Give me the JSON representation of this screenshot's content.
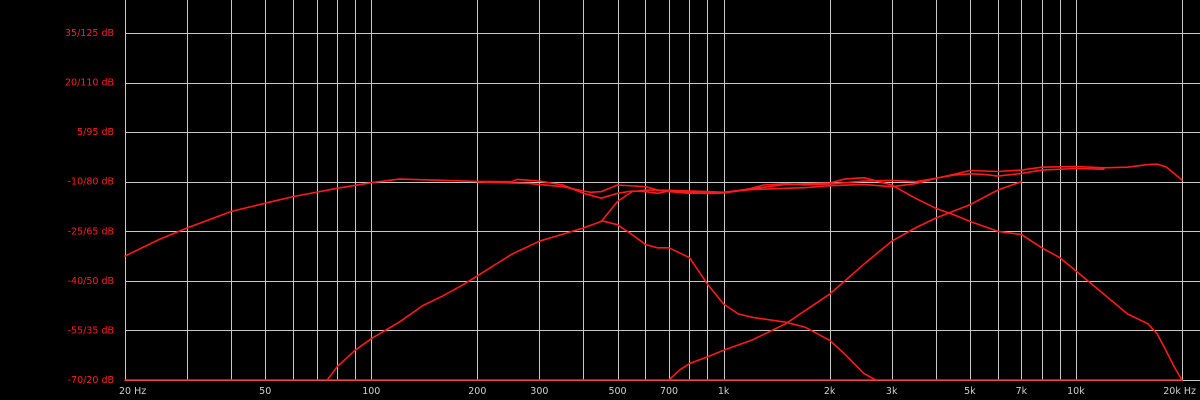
{
  "chart_data": {
    "type": "line",
    "title": "",
    "xlabel": "",
    "ylabel": "",
    "x_scale": "log",
    "xlim": [
      20,
      20000
    ],
    "ylim": [
      -70,
      35
    ],
    "grid": true,
    "legend": "none",
    "colors": {
      "background": "#000000",
      "grid": "#c8c8c8",
      "series": "#ff1a1a",
      "label": "#ff2020",
      "xlabel": "#d0d0d0"
    },
    "y_ticks": [
      {
        "value": 35,
        "label": "35/125 dB"
      },
      {
        "value": 20,
        "label": "20/110 dB"
      },
      {
        "value": 5,
        "label": "5/95 dB"
      },
      {
        "value": -10,
        "label": "-10/80 dB"
      },
      {
        "value": -25,
        "label": "-25/65 dB"
      },
      {
        "value": -40,
        "label": "-40/50 dB"
      },
      {
        "value": -55,
        "label": "-55/35 dB"
      },
      {
        "value": -70,
        "label": "-70/20 dB"
      }
    ],
    "x_ticks": [
      {
        "value": 20,
        "label": "20 Hz"
      },
      {
        "value": 50,
        "label": "50"
      },
      {
        "value": 100,
        "label": "100"
      },
      {
        "value": 200,
        "label": "200"
      },
      {
        "value": 300,
        "label": "300"
      },
      {
        "value": 500,
        "label": "500"
      },
      {
        "value": 700,
        "label": "700"
      },
      {
        "value": 1000,
        "label": "1k"
      },
      {
        "value": 2000,
        "label": "2k"
      },
      {
        "value": 3000,
        "label": "3k"
      },
      {
        "value": 5000,
        "label": "5k"
      },
      {
        "value": 7000,
        "label": "7k"
      },
      {
        "value": 10000,
        "label": "10k"
      },
      {
        "value": 20000,
        "label": "20k Hz"
      }
    ],
    "x_gridlines": [
      20,
      30,
      40,
      50,
      60,
      70,
      80,
      90,
      100,
      200,
      300,
      400,
      500,
      600,
      700,
      800,
      900,
      1000,
      2000,
      3000,
      4000,
      5000,
      6000,
      7000,
      8000,
      9000,
      10000,
      20000
    ],
    "series": [
      {
        "points": [
          [
            20,
            -32.5
          ],
          [
            25,
            -27.5
          ],
          [
            30,
            -24
          ],
          [
            40,
            -19
          ],
          [
            50,
            -16.5
          ],
          [
            60,
            -14.5
          ],
          [
            80,
            -12
          ],
          [
            100,
            -10.3
          ],
          [
            120,
            -9.2
          ],
          [
            150,
            -9.5
          ],
          [
            200,
            -9.9
          ],
          [
            250,
            -10
          ],
          [
            260,
            -9.3
          ],
          [
            300,
            -9.8
          ],
          [
            350,
            -11
          ],
          [
            400,
            -13.5
          ],
          [
            450,
            -15
          ],
          [
            500,
            -13.5
          ],
          [
            550,
            -12.8
          ],
          [
            600,
            -13
          ],
          [
            650,
            -13.5
          ],
          [
            700,
            -12.8
          ],
          [
            750,
            -13
          ],
          [
            800,
            -13.2
          ],
          [
            900,
            -13.6
          ],
          [
            1000,
            -13.4
          ],
          [
            1100,
            -12.8
          ],
          [
            1200,
            -12
          ],
          [
            1300,
            -11
          ],
          [
            1500,
            -10.6
          ],
          [
            1700,
            -11
          ],
          [
            2000,
            -10.7
          ],
          [
            2500,
            -9.8
          ],
          [
            3000,
            -9.6
          ],
          [
            3500,
            -10
          ],
          [
            4000,
            -9
          ],
          [
            4500,
            -7.8
          ],
          [
            5000,
            -6.6
          ],
          [
            6000,
            -6.9
          ],
          [
            7000,
            -6.5
          ],
          [
            8000,
            -5.6
          ],
          [
            10000,
            -5.4
          ],
          [
            12000,
            -5.8
          ],
          [
            14000,
            -5.6
          ],
          [
            16000,
            -4.8
          ],
          [
            17000,
            -4.7
          ],
          [
            18000,
            -5.5
          ],
          [
            19000,
            -7.5
          ],
          [
            20000,
            -9.5
          ]
        ]
      },
      {
        "points": [
          [
            75,
            -70
          ],
          [
            80,
            -66
          ],
          [
            90,
            -61
          ],
          [
            100,
            -57.5
          ],
          [
            120,
            -52.5
          ],
          [
            140,
            -47.5
          ],
          [
            160,
            -44.5
          ],
          [
            180,
            -41.5
          ],
          [
            200,
            -38.5
          ],
          [
            250,
            -32
          ],
          [
            300,
            -28
          ],
          [
            400,
            -24
          ],
          [
            450,
            -22
          ],
          [
            500,
            -16
          ],
          [
            550,
            -13
          ],
          [
            600,
            -12.5
          ],
          [
            700,
            -12.6
          ],
          [
            900,
            -13
          ],
          [
            1000,
            -13.2
          ],
          [
            1500,
            -10.8
          ],
          [
            2000,
            -10.4
          ],
          [
            2200,
            -9.2
          ],
          [
            2500,
            -8.8
          ],
          [
            3000,
            -11
          ],
          [
            3500,
            -15
          ],
          [
            4000,
            -18
          ],
          [
            4500,
            -20
          ],
          [
            5000,
            -22
          ],
          [
            6000,
            -25
          ],
          [
            7000,
            -26
          ],
          [
            8000,
            -30
          ],
          [
            9000,
            -33
          ],
          [
            10000,
            -37
          ],
          [
            12000,
            -44
          ],
          [
            14000,
            -50
          ],
          [
            16000,
            -53
          ],
          [
            17000,
            -56
          ],
          [
            18000,
            -61
          ],
          [
            19000,
            -66
          ],
          [
            20000,
            -70
          ]
        ]
      },
      {
        "points": [
          [
            200,
            -10.1
          ],
          [
            280,
            -10.5
          ],
          [
            350,
            -11.5
          ],
          [
            400,
            -12.8
          ],
          [
            420,
            -13.2
          ],
          [
            450,
            -13
          ],
          [
            500,
            -11
          ],
          [
            600,
            -11.5
          ],
          [
            650,
            -12.5
          ],
          [
            700,
            -13
          ],
          [
            800,
            -13.5
          ],
          [
            1000,
            -13.2
          ],
          [
            1200,
            -12.4
          ],
          [
            1500,
            -12
          ],
          [
            1700,
            -11.8
          ],
          [
            2000,
            -11.2
          ],
          [
            2500,
            -10.8
          ],
          [
            3000,
            -11.5
          ],
          [
            3500,
            -10.6
          ],
          [
            4000,
            -9
          ],
          [
            4500,
            -8
          ],
          [
            5000,
            -7.6
          ],
          [
            5500,
            -7.8
          ],
          [
            6000,
            -8.3
          ],
          [
            7000,
            -7.5
          ],
          [
            8000,
            -6.5
          ],
          [
            10000,
            -6
          ],
          [
            12000,
            -6.2
          ]
        ]
      },
      {
        "points": [
          [
            450,
            -21.8
          ],
          [
            500,
            -23
          ],
          [
            550,
            -26
          ],
          [
            600,
            -29
          ],
          [
            650,
            -30
          ],
          [
            700,
            -30
          ],
          [
            800,
            -33
          ],
          [
            900,
            -41
          ],
          [
            1000,
            -47
          ],
          [
            1100,
            -50
          ],
          [
            1200,
            -51
          ],
          [
            1500,
            -52.5
          ],
          [
            1700,
            -54
          ],
          [
            2000,
            -58
          ],
          [
            2200,
            -62
          ],
          [
            2500,
            -68
          ],
          [
            2700,
            -70
          ]
        ]
      },
      {
        "points": [
          [
            700,
            -70
          ],
          [
            750,
            -67
          ],
          [
            800,
            -65
          ],
          [
            900,
            -63
          ],
          [
            1000,
            -61
          ],
          [
            1200,
            -58
          ],
          [
            1500,
            -53
          ],
          [
            2000,
            -44
          ],
          [
            2500,
            -35
          ],
          [
            3000,
            -28
          ],
          [
            3500,
            -24
          ],
          [
            4000,
            -21
          ],
          [
            5000,
            -17
          ],
          [
            6000,
            -12.5
          ],
          [
            7000,
            -10
          ]
        ]
      },
      {
        "points": [
          [
            20,
            -70
          ],
          [
            100,
            -70
          ],
          [
            500,
            -70
          ],
          [
            1000,
            -70
          ],
          [
            2000,
            -70
          ],
          [
            5000,
            -70
          ],
          [
            10000,
            -70
          ],
          [
            20000,
            -70
          ]
        ]
      }
    ]
  }
}
